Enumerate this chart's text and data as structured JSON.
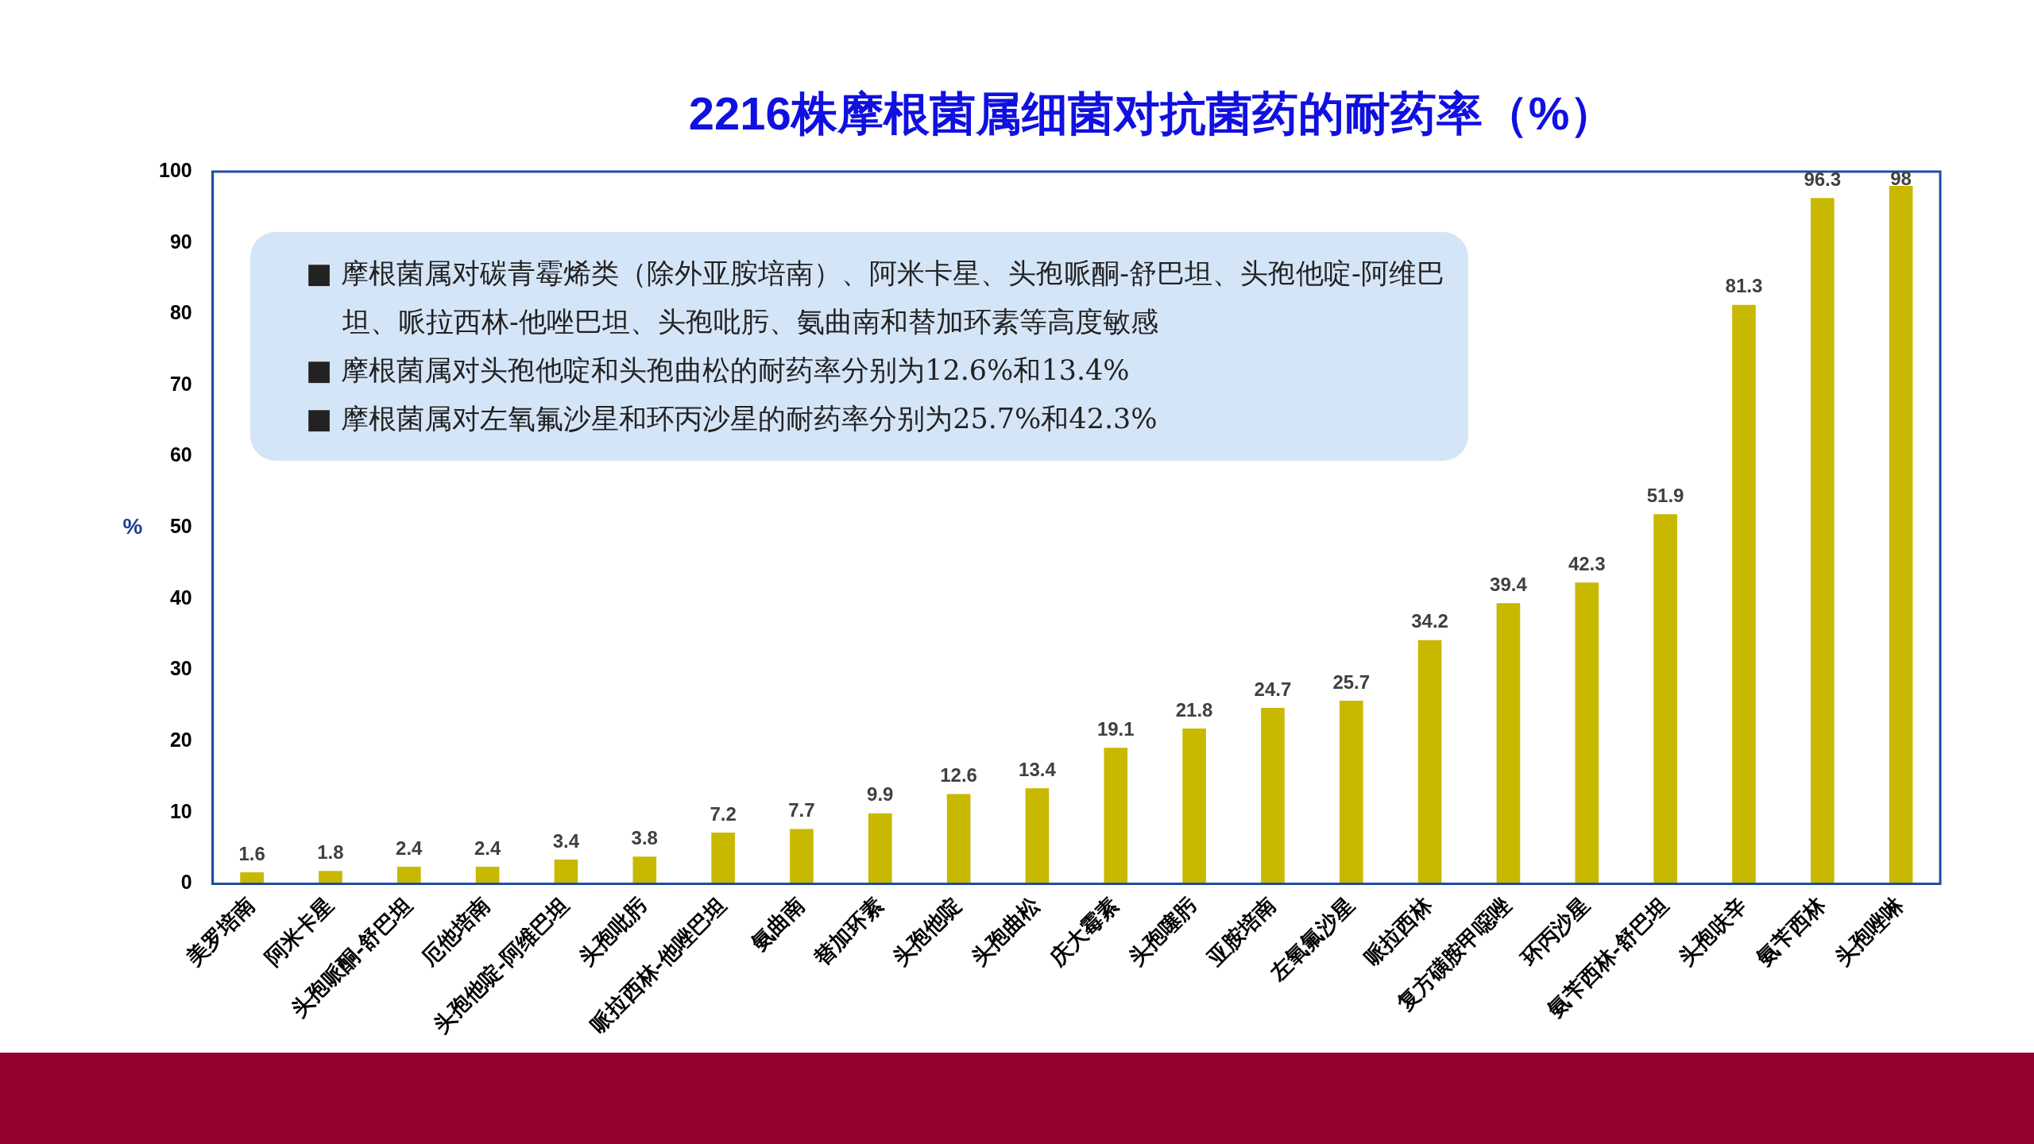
{
  "chart_data": {
    "type": "bar",
    "title": "2216株摩根菌属细菌对抗菌药的耐药率（%）",
    "ylabel": "%",
    "categories": [
      "美罗培南",
      "阿米卡星",
      "头孢哌酮-舒巴坦",
      "厄他培南",
      "头孢他啶-阿维巴坦",
      "头孢吡肟",
      "哌拉西林-他唑巴坦",
      "氨曲南",
      "替加环素",
      "头孢他啶",
      "头孢曲松",
      "庆大霉素",
      "头孢噻肟",
      "亚胺培南",
      "左氧氟沙星",
      "哌拉西林",
      "复方磺胺甲噁唑",
      "环丙沙星",
      "氨苄西林-舒巴坦",
      "头孢呋辛",
      "氨苄西林",
      "头孢唑啉"
    ],
    "values": [
      1.6,
      1.8,
      2.4,
      2.4,
      3.4,
      3.8,
      7.2,
      7.7,
      9.9,
      12.6,
      13.4,
      19.1,
      21.8,
      24.7,
      25.7,
      34.2,
      39.4,
      42.3,
      51.9,
      81.3,
      96.3,
      98
    ],
    "color": "#c9b800",
    "ylim": [
      0,
      100
    ],
    "yticks": [
      0,
      10,
      20,
      30,
      40,
      50,
      60,
      70,
      80,
      90,
      100
    ],
    "grid": false,
    "legend": false,
    "data_labels": true,
    "annotations": [
      "■ 摩根菌属对碳青霉烯类（除外亚胺培南）、阿米卡星、头孢哌酮-舒巴坦、头孢他啶-阿维巴坦、哌拉西林-他唑巴坦、头孢吡肟、氨曲南和替加环素等高度敏感",
      "■ 摩根菌属对头孢他啶和头孢曲松的耐药率分别为12.6%和13.4%",
      "■ 摩根菌属对左氧氟沙星和环丙沙星的耐药率分别为25.7%和42.3%"
    ]
  }
}
